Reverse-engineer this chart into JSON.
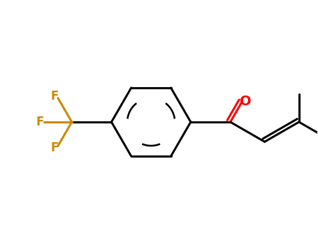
{
  "background_color": "#ffffff",
  "bond_color": "#000000",
  "oxygen_color": "#ff0000",
  "fluorine_color": "#cc8800",
  "bond_width": 2.2,
  "figsize": [
    4.55,
    3.5
  ],
  "dpi": 100,
  "xlim": [
    -1.1,
    1.3
  ],
  "ylim": [
    -0.9,
    0.9
  ]
}
